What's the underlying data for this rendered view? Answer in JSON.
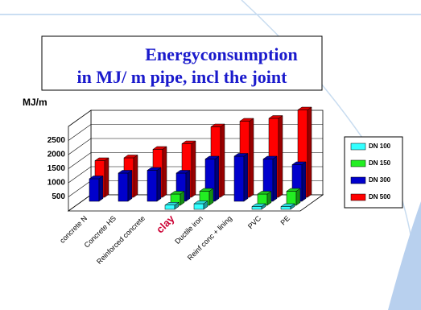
{
  "chart_data": {
    "type": "bar3d",
    "title": [
      "Energyconsumption",
      "in MJ/ m pipe, incl the joint"
    ],
    "y_label": "MJ/m",
    "categories": [
      "concrete N",
      "Concrete HS",
      "Reinforced concrete",
      "clay",
      "Ductile iron",
      "Reinf conc + lining",
      "PVC",
      "PE"
    ],
    "series": [
      {
        "name": "DN 100",
        "color": "#33ffff",
        "values": [
          null,
          null,
          null,
          150,
          200,
          null,
          100,
          100
        ]
      },
      {
        "name": "DN 150",
        "color": "#22ee22",
        "values": [
          null,
          null,
          null,
          400,
          500,
          null,
          400,
          500
        ]
      },
      {
        "name": "DN 300",
        "color": "#0000cc",
        "values": [
          800,
          1000,
          1100,
          1000,
          1500,
          1600,
          1500,
          1300
        ]
      },
      {
        "name": "DN 500",
        "color": "#ff0000",
        "values": [
          1300,
          1400,
          1700,
          1900,
          2500,
          2700,
          2800,
          3100
        ]
      }
    ],
    "ylim": [
      0,
      3000
    ],
    "yticks": [
      500,
      1000,
      1500,
      2000,
      2500
    ],
    "grid": true
  }
}
